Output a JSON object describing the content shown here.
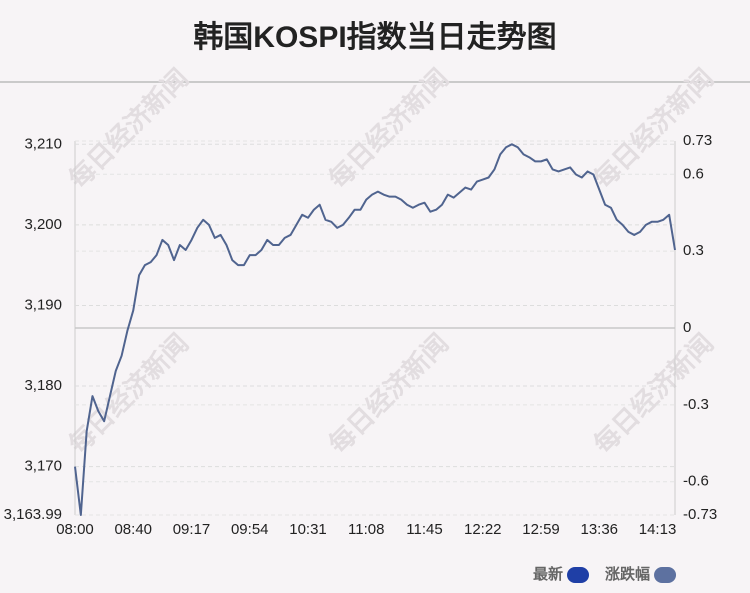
{
  "chart_data": {
    "type": "line",
    "title": "韩国KOSPI指数当日走势图",
    "watermark": "每日经济新闻",
    "categories": [
      "08:00",
      null,
      null,
      null,
      null,
      null,
      null,
      null,
      null,
      null,
      "08:40",
      null,
      null,
      null,
      null,
      null,
      null,
      null,
      null,
      null,
      "09:17",
      null,
      null,
      null,
      null,
      null,
      null,
      null,
      null,
      null,
      "09:54",
      null,
      null,
      null,
      null,
      null,
      null,
      null,
      null,
      null,
      "10:31",
      null,
      null,
      null,
      null,
      null,
      null,
      null,
      null,
      null,
      "11:08",
      null,
      null,
      null,
      null,
      null,
      null,
      null,
      null,
      null,
      "11:45",
      null,
      null,
      null,
      null,
      null,
      null,
      null,
      null,
      null,
      "12:22",
      null,
      null,
      null,
      null,
      null,
      null,
      null,
      null,
      null,
      "12:59",
      null,
      null,
      null,
      null,
      null,
      null,
      null,
      null,
      null,
      "13:36",
      null,
      null,
      null,
      null,
      null,
      null,
      null,
      null,
      null,
      "14:13",
      null,
      null,
      null
    ],
    "values": [
      3170,
      3163.99,
      3174.38,
      3178.75,
      3176.88,
      3175.63,
      3178.75,
      3181.88,
      3183.75,
      3186.88,
      3189.38,
      3193.75,
      3195,
      3195.38,
      3196.25,
      3198.13,
      3197.5,
      3195.63,
      3197.5,
      3196.88,
      3198.13,
      3199.63,
      3200.63,
      3200,
      3198.38,
      3198.75,
      3197.5,
      3195.63,
      3195,
      3195,
      3196.25,
      3196.25,
      3196.88,
      3198.13,
      3197.5,
      3197.5,
      3198.38,
      3198.75,
      3200,
      3201.25,
      3200.88,
      3201.88,
      3202.5,
      3200.63,
      3200.38,
      3199.63,
      3200,
      3200.88,
      3201.88,
      3201.88,
      3203.13,
      3203.75,
      3204.13,
      3203.75,
      3203.5,
      3203.5,
      3203.13,
      3202.5,
      3202.13,
      3202.5,
      3202.75,
      3201.63,
      3201.88,
      3202.5,
      3203.75,
      3203.38,
      3204,
      3204.63,
      3204.38,
      3205.38,
      3205.63,
      3205.88,
      3206.88,
      3208.75,
      3209.63,
      3210,
      3209.63,
      3208.75,
      3208.38,
      3207.88,
      3207.88,
      3208.13,
      3206.88,
      3206.63,
      3206.88,
      3207.13,
      3206.25,
      3205.88,
      3206.63,
      3206.25,
      3204.38,
      3202.5,
      3202.13,
      3200.63,
      3200,
      3199.13,
      3198.75,
      3199.13,
      3200,
      3200.38,
      3200.38,
      3200.63,
      3201.25,
      3196.88
    ],
    "color": "#50648f",
    "ylim": [
      3163.99,
      3210.41
    ],
    "yticks": [
      {
        "value": 3163.99,
        "label": "3,163.99"
      },
      {
        "value": 3170,
        "label": "3,170"
      },
      {
        "value": 3180,
        "label": "3,180"
      },
      {
        "value": 3190,
        "label": "3,190"
      },
      {
        "value": 3200,
        "label": "3,200"
      },
      {
        "value": 3210,
        "label": "3,210"
      }
    ],
    "y2lim": [
      -0.73,
      0.73
    ],
    "y2ticks": [
      -0.73,
      -0.6,
      -0.3,
      0,
      0.3,
      0.6,
      0.73
    ],
    "grid": true,
    "legend": [
      {
        "name": "最新",
        "color": "#1f3fa6"
      },
      {
        "name": "涨跌幅",
        "color": "#5d71a0"
      }
    ]
  }
}
